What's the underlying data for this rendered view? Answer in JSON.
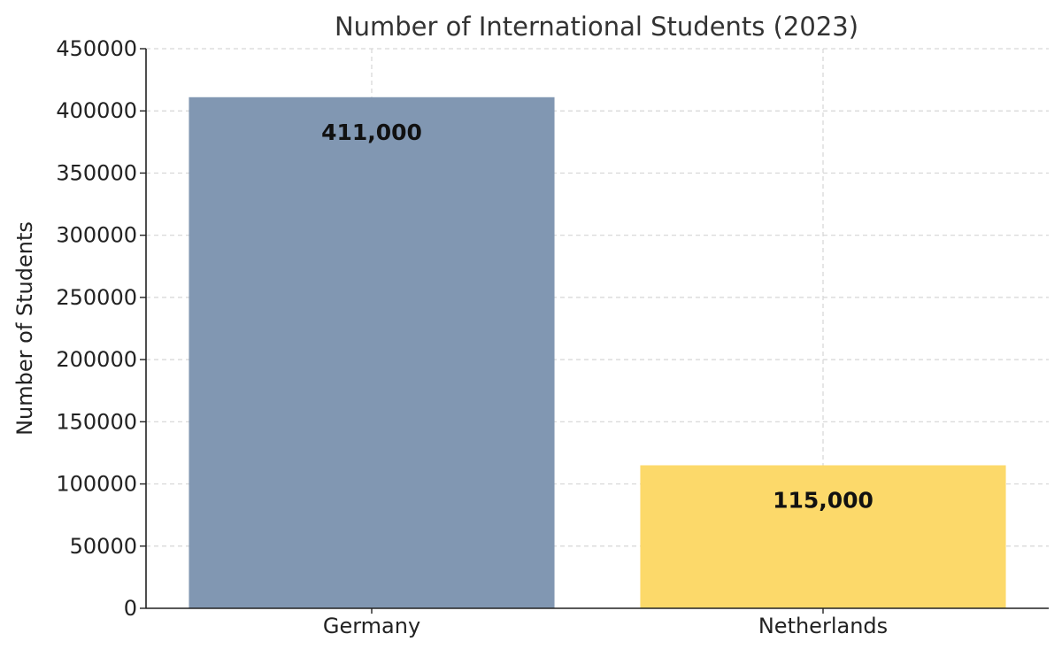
{
  "chart_data": {
    "type": "bar",
    "title": "Number of International Students (2023)",
    "xlabel": "",
    "ylabel": "Number of Students",
    "categories": [
      "Germany",
      "Netherlands"
    ],
    "values": [
      411000,
      115000
    ],
    "value_labels": [
      "411,000",
      "115,000"
    ],
    "colors": [
      "#8197b2",
      "#fcd96a"
    ],
    "ylim": [
      0,
      450000
    ],
    "yticks": [
      0,
      50000,
      100000,
      150000,
      200000,
      250000,
      300000,
      350000,
      400000,
      450000
    ],
    "grid": true,
    "legend": "none"
  }
}
